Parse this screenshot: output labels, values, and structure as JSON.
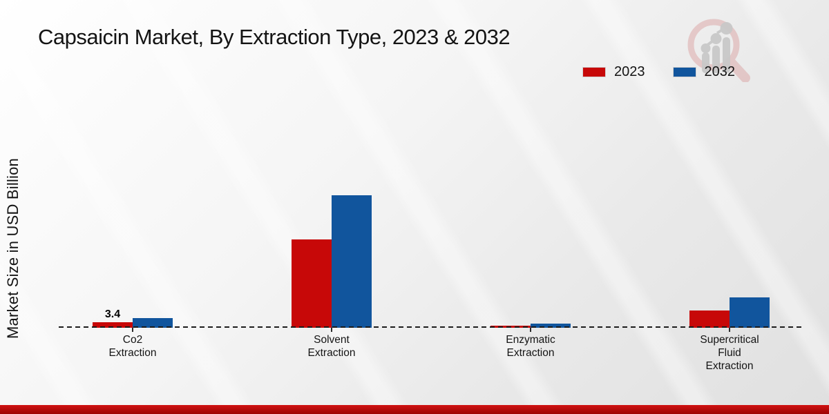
{
  "title": "Capsaicin Market, By Extraction Type, 2023 & 2032",
  "ylabel": "Market Size in USD Billion",
  "legend": {
    "position": "top-right",
    "items": [
      {
        "label": "2023",
        "color": "#c70808"
      },
      {
        "label": "2032",
        "color": "#11559d"
      }
    ]
  },
  "watermark_name": "market-research-future-logo",
  "colors": {
    "series_2023": "#c70808",
    "series_2032": "#11559d",
    "banner_red": "#b00707",
    "background": "#ececec",
    "text": "#141414"
  },
  "chart_data": {
    "type": "bar",
    "title": "Capsaicin Market, By Extraction Type, 2023 & 2032",
    "xlabel": "",
    "ylabel": "Market Size in USD Billion",
    "categories": [
      "Co2 Extraction",
      "Solvent Extraction",
      "Enzymatic Extraction",
      "Supercritical Fluid Extraction"
    ],
    "category_label_lines": [
      [
        "Co2",
        "Extraction"
      ],
      [
        "Solvent",
        "Extraction"
      ],
      [
        "Enzymatic",
        "Extraction"
      ],
      [
        "Supercritical",
        "Fluid",
        "Extraction"
      ]
    ],
    "series": [
      {
        "name": "2023",
        "color": "#c70808",
        "values": [
          3.4,
          54.4,
          1.3,
          10.6
        ]
      },
      {
        "name": "2032",
        "color": "#11559d",
        "values": [
          6.0,
          81.6,
          2.6,
          18.7
        ]
      }
    ],
    "data_labels": [
      {
        "series": "2023",
        "category_index": 0,
        "text": "3.4"
      }
    ],
    "ylim": [
      0,
      85
    ],
    "grid": false,
    "baseline_style": "dashed",
    "legend_position": "top-right"
  }
}
